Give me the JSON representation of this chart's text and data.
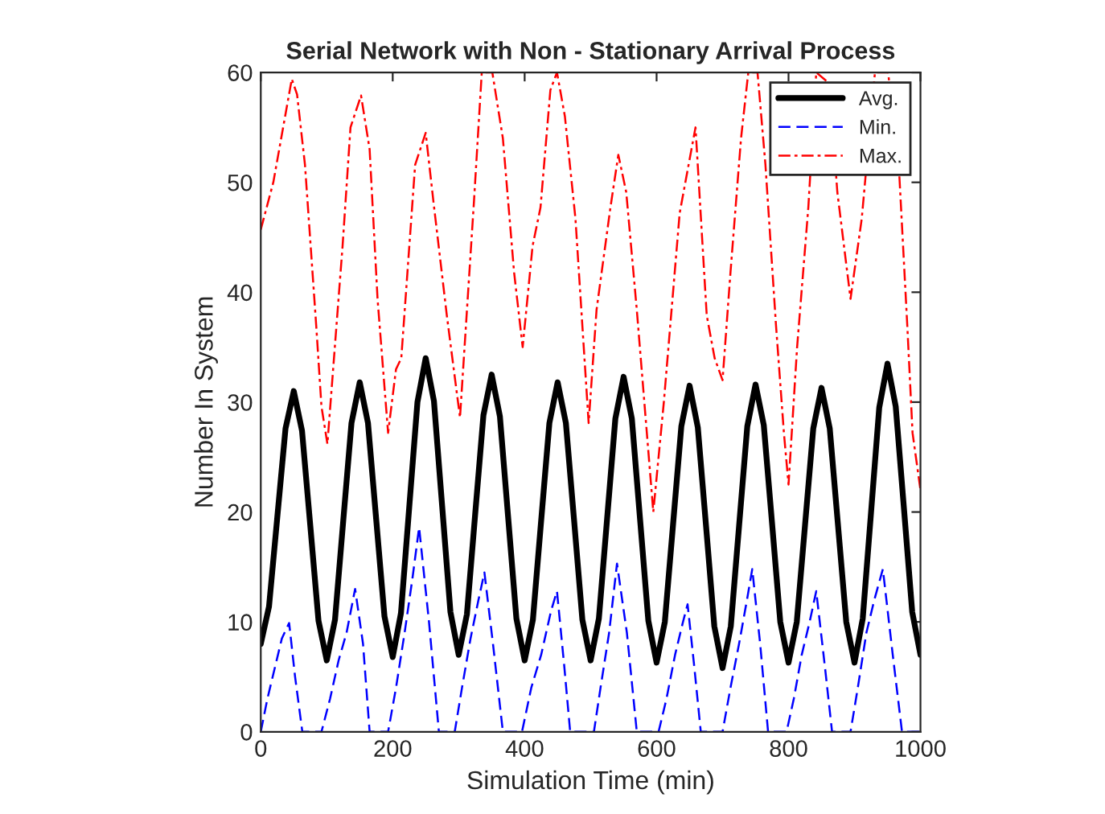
{
  "chart_data": {
    "type": "line",
    "title": "Serial Network with Non - Stationary Arrival Process",
    "xlabel": "Simulation Time (min)",
    "ylabel": "Number In System",
    "xlim": [
      0,
      1000
    ],
    "xticks": [
      0,
      200,
      400,
      600,
      800,
      1000
    ],
    "ylim": [
      0,
      60
    ],
    "yticks": [
      0,
      10,
      20,
      30,
      40,
      50,
      60
    ],
    "grid": false,
    "legend": "top right",
    "marker": "none",
    "series": [
      {
        "name": "Avg.",
        "color": "#000000",
        "line_style": "solid",
        "x": [
          0,
          12.5,
          25,
          37.5,
          50,
          62.5,
          75,
          87.5,
          100,
          112.5,
          125,
          137.5,
          150,
          162.5,
          175,
          187.5,
          200,
          212.5,
          225,
          237.5,
          250,
          262.5,
          275,
          287.5,
          300,
          312.5,
          325,
          337.5,
          350,
          362.5,
          375,
          387.5,
          400,
          412.5,
          425,
          437.5,
          450,
          462.5,
          475,
          487.5,
          500,
          512.5,
          525,
          537.5,
          550,
          562.5,
          575,
          587.5,
          600,
          612.5,
          625,
          637.5,
          650,
          662.5,
          675,
          687.5,
          700,
          712.5,
          725,
          737.5,
          750,
          762.5,
          775,
          787.5,
          800,
          812.5,
          825,
          837.5,
          850,
          862.5,
          875,
          887.5,
          900,
          912.5,
          925,
          937.5,
          950,
          962.5,
          975,
          987.5,
          1000
        ],
        "values": [
          8,
          11.4,
          19.5,
          27.6,
          31,
          27.4,
          18.8,
          10.1,
          6.5,
          10.2,
          19.2,
          28.1,
          31.8,
          28.1,
          19.3,
          10.5,
          6.8,
          10.8,
          20.4,
          30.0,
          34,
          30.1,
          20.5,
          10.9,
          7,
          10.7,
          19.8,
          28.8,
          32.5,
          28.7,
          19.5,
          10.3,
          6.5,
          10.2,
          19.2,
          28.1,
          31.8,
          28.1,
          19.2,
          10.2,
          6.5,
          10.3,
          19.4,
          28.5,
          32.3,
          28.5,
          19.3,
          10.1,
          6.3,
          10.0,
          18.9,
          27.8,
          31.5,
          27.7,
          18.7,
          9.6,
          5.8,
          9.6,
          18.7,
          27.8,
          31.6,
          27.9,
          19.0,
          10.0,
          6.3,
          10.0,
          18.8,
          27.6,
          31.3,
          27.6,
          18.8,
          10.0,
          6.3,
          10.3,
          19.9,
          29.5,
          33.5,
          29.6,
          20.3,
          10.9,
          7
        ]
      },
      {
        "name": "Min.",
        "color": "#0000ff",
        "line_style": "dashed",
        "x": [
          0,
          10,
          22,
          32,
          43,
          52,
          63,
          92,
          105,
          118,
          130,
          143,
          155,
          165,
          193,
          205,
          218,
          230,
          240,
          255,
          270,
          294,
          305,
          318,
          330,
          339,
          352,
          367,
          396,
          410,
          425,
          440,
          449,
          460,
          469,
          505,
          515,
          528,
          540,
          555,
          570,
          603,
          615,
          628,
          640,
          647,
          657,
          667,
          700,
          712,
          725,
          737,
          745,
          757,
          769,
          797,
          808,
          820,
          832,
          842,
          855,
          866,
          894,
          905,
          918,
          930,
          943,
          958,
          972,
          1000
        ],
        "values": [
          0,
          3,
          6,
          8.5,
          9.9,
          5,
          0,
          0,
          3,
          6.5,
          9,
          13,
          8,
          0,
          0,
          4,
          9,
          14,
          18.6,
          10,
          0,
          0,
          4,
          8.5,
          12,
          14.5,
          8,
          0,
          0,
          4,
          7,
          11,
          12.8,
          6,
          0,
          0,
          4,
          9,
          15.3,
          9,
          0,
          0,
          3,
          7,
          10,
          11.6,
          6,
          0,
          0,
          4,
          8,
          12,
          14.8,
          8,
          0,
          0,
          3,
          7,
          10,
          12.8,
          6,
          0,
          0,
          4,
          9,
          12,
          14.8,
          7,
          0,
          0
        ]
      },
      {
        "name": "Max.",
        "color": "#ff0000",
        "line_style": "dashdot",
        "x": [
          0,
          19,
          47,
          55,
          67,
          84,
          92,
          101,
          124,
          136,
          152,
          165,
          177,
          193,
          205,
          213,
          234,
          250,
          262,
          282,
          302,
          323,
          335,
          351,
          367,
          384,
          397,
          412,
          424,
          439,
          449,
          461,
          477,
          497,
          509,
          530,
          542,
          554,
          570,
          595,
          611,
          635,
          659,
          676,
          688,
          700,
          712,
          728,
          739,
          753,
          765,
          781,
          793,
          800,
          813,
          830,
          842,
          862,
          874,
          894,
          911,
          931,
          951,
          968,
          980,
          988,
          1000
        ],
        "values": [
          45.7,
          50,
          59.4,
          58,
          51.6,
          37,
          29.6,
          26.2,
          44.2,
          55,
          57.9,
          53,
          39.4,
          27.2,
          33,
          34,
          51.6,
          54.5,
          48.1,
          37.9,
          28.6,
          48.1,
          60,
          60,
          54,
          41.8,
          35,
          44.2,
          47.7,
          58.4,
          60,
          56,
          46.7,
          28.1,
          38.4,
          47.7,
          52.5,
          49.1,
          38.4,
          20,
          30,
          47.2,
          55,
          37.9,
          34,
          32,
          41.8,
          54,
          60,
          60,
          51.6,
          37,
          27.2,
          22.5,
          35,
          47.7,
          60,
          59,
          49.1,
          39.4,
          46.7,
          60,
          60,
          50.6,
          37,
          27.2,
          22
        ]
      }
    ]
  }
}
